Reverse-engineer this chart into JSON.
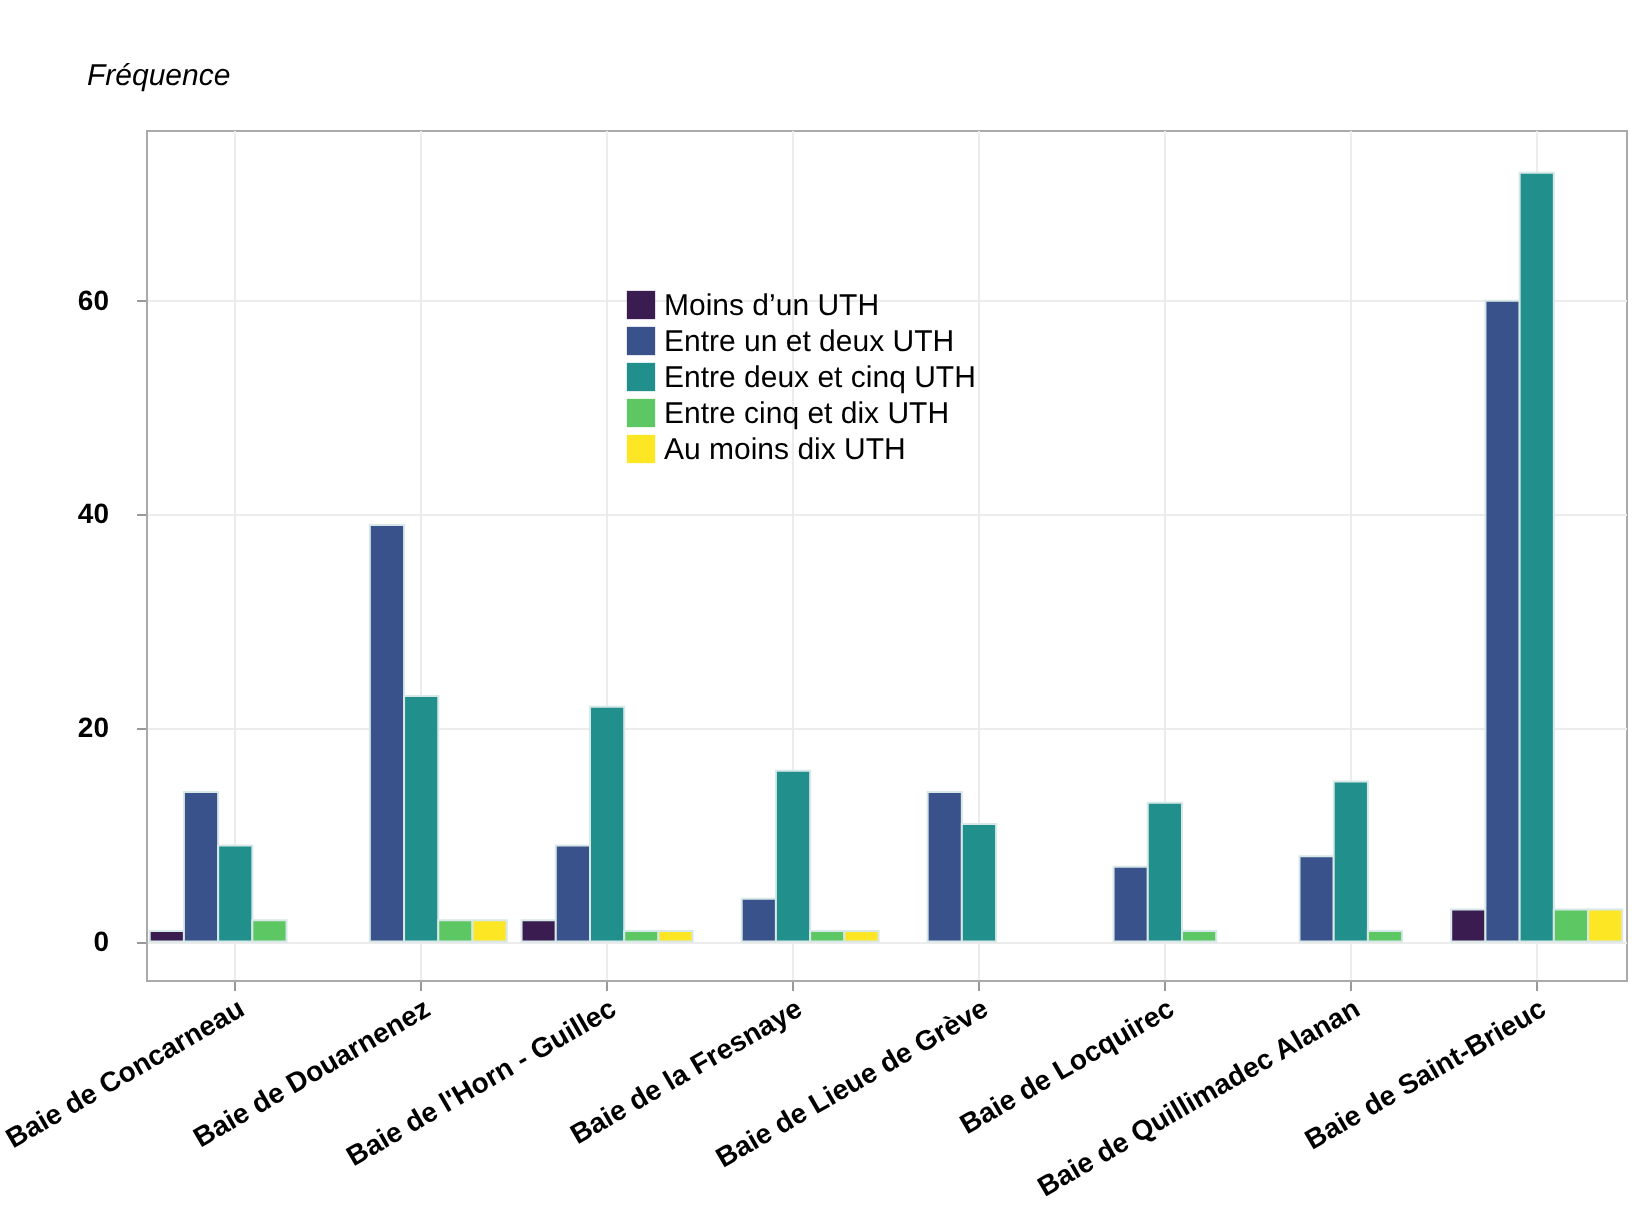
{
  "chart_data": {
    "type": "bar",
    "ylabel": "Fréquence",
    "categories": [
      "Baie de Concarneau",
      "Baie de Douarnenez",
      "Baie de l'Horn - Guillec",
      "Baie de la Fresnaye",
      "Baie de Lieue de Grève",
      "Baie de Locquirec",
      "Baie de Quillimadec Alanan",
      "Baie de Saint-Brieuc"
    ],
    "series": [
      {
        "name": "Moins d’un UTH",
        "color": "#3b1c50",
        "values": [
          1,
          null,
          2,
          null,
          null,
          null,
          null,
          3
        ]
      },
      {
        "name": "Entre un et deux UTH",
        "color": "#3a528b",
        "values": [
          14,
          39,
          9,
          4,
          14,
          7,
          8,
          60
        ]
      },
      {
        "name": "Entre deux et cinq UTH",
        "color": "#21908c",
        "values": [
          9,
          23,
          22,
          16,
          11,
          13,
          15,
          72
        ]
      },
      {
        "name": "Entre cinq et dix UTH",
        "color": "#5dc863",
        "values": [
          2,
          2,
          1,
          1,
          null,
          1,
          1,
          3
        ]
      },
      {
        "name": "Au moins dix UTH",
        "color": "#fde725",
        "values": [
          null,
          2,
          1,
          1,
          null,
          null,
          null,
          3
        ]
      }
    ],
    "ylim": [
      -3.6,
      76
    ],
    "yticks": [
      0,
      20,
      40,
      60
    ],
    "grid": true,
    "legend": "top"
  }
}
